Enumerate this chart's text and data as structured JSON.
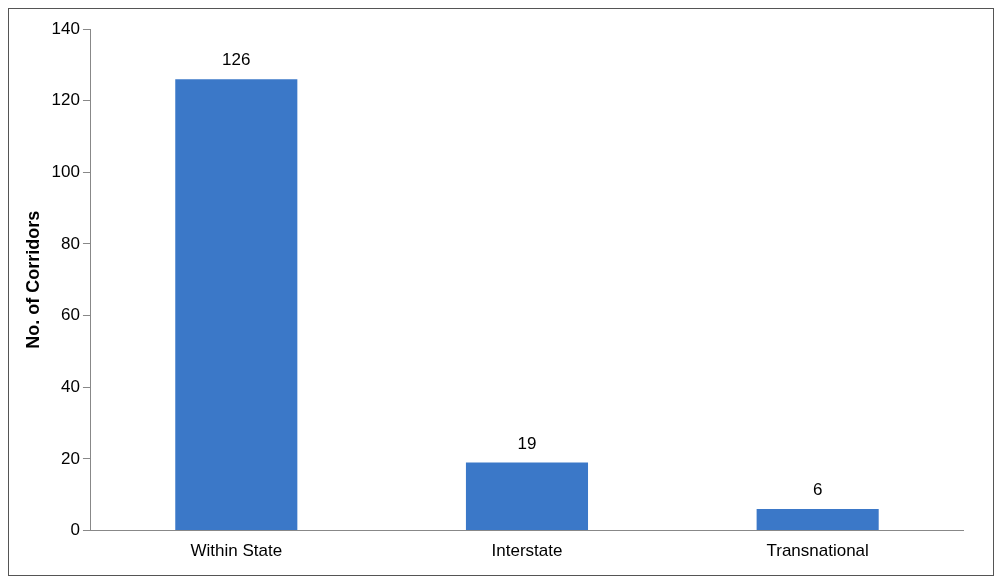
{
  "chart_data": {
    "type": "bar",
    "ylabel": "No. of Corridors",
    "categories": [
      "Within State",
      "Interstate",
      "Transnational"
    ],
    "values": [
      126,
      19,
      6
    ],
    "color": "#3b78c8",
    "ylim": [
      0,
      140
    ],
    "yticks": [
      0,
      20,
      40,
      60,
      80,
      100,
      120,
      140
    ],
    "grid": false,
    "legend": false,
    "data_labels": true
  }
}
